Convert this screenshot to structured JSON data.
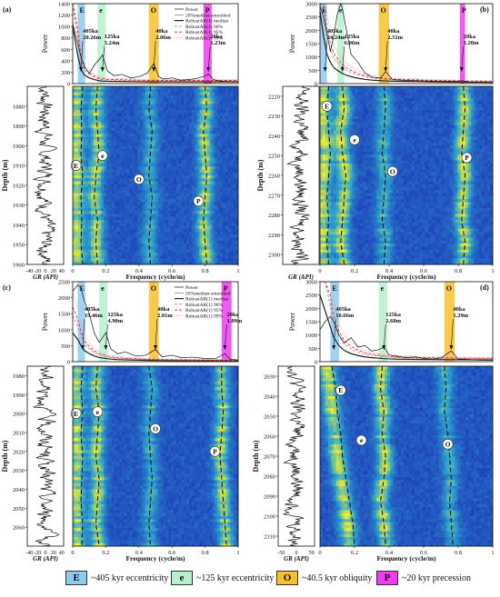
{
  "colors": {
    "E": "#8ecbf0",
    "e": "#b6f0cc",
    "O": "#f6c12b",
    "P": "#f03cf0",
    "heat_low": "#1c2fb8",
    "heat_mid": "#2fa6cf",
    "heat_high": "#f2ef2a"
  },
  "legend": [
    {
      "letter": "E",
      "text": "~405 kyr eccentricity",
      "color": "#8ecbf0"
    },
    {
      "letter": "e",
      "text": "~125 kyr eccentricity",
      "color": "#b6f0cc"
    },
    {
      "letter": "O",
      "text": "~40.5 kyr obliquity",
      "color": "#f6c12b"
    },
    {
      "letter": "P",
      "text": "~20 kyr precession",
      "color": "#f03cf0"
    }
  ],
  "chart_data": [
    {
      "panel": "(a)",
      "type": "line",
      "xlabel": "Frequency (cycle/m)",
      "ylabel_spectrum": "Power",
      "ylabel_heatmap": "Depth (m)",
      "gr_label": "GR (API)",
      "xlim": [
        0,
        1
      ],
      "x_ticks": [
        "0",
        "0.2",
        "0.4",
        "0.6",
        "0.8",
        "1"
      ],
      "power_ylim": [
        0,
        1400
      ],
      "power_ticks": [
        "0",
        "200",
        "400",
        "600",
        "800",
        "1000",
        "1200",
        "1400"
      ],
      "depth_range": [
        1870,
        1960
      ],
      "depth_ticks": [
        "1880",
        "1890",
        "1900",
        "1910",
        "1920",
        "1930",
        "1940",
        "1950",
        "1960"
      ],
      "gr_ticks": [
        "-40",
        "-20",
        "0",
        "20",
        "40"
      ],
      "gr_range": [
        -45,
        45
      ],
      "legend_entries": [
        "Power",
        "20%median-smoothed",
        "RobustAR(1) median",
        "RobustAR(1) 90%",
        "RobustAR(1) 95%",
        "RobustAR(1) 99%"
      ],
      "bands": [
        {
          "letter": "E",
          "x0": 0.03,
          "x1": 0.075
        },
        {
          "letter": "e",
          "x0": 0.15,
          "x1": 0.2
        },
        {
          "letter": "O",
          "x0": 0.46,
          "x1": 0.52
        },
        {
          "letter": "P",
          "x0": 0.79,
          "x1": 0.84
        }
      ],
      "peaks": [
        {
          "label": "405ka",
          "value": "20.26m",
          "x": 0.05
        },
        {
          "label": "125ka",
          "value": "5.24m",
          "x": 0.18
        },
        {
          "label": "40ka",
          "value": "2.06m",
          "x": 0.49
        },
        {
          "label": "20ka",
          "value": "1.23m",
          "x": 0.82
        }
      ],
      "power_x": [
        0,
        0.03,
        0.05,
        0.07,
        0.1,
        0.13,
        0.16,
        0.18,
        0.21,
        0.25,
        0.3,
        0.35,
        0.4,
        0.45,
        0.49,
        0.52,
        0.55,
        0.6,
        0.65,
        0.7,
        0.75,
        0.8,
        0.82,
        0.85,
        0.9,
        1
      ],
      "power_y": [
        1050,
        700,
        470,
        300,
        180,
        320,
        420,
        500,
        220,
        140,
        160,
        100,
        120,
        180,
        350,
        120,
        80,
        100,
        60,
        70,
        90,
        130,
        170,
        70,
        40,
        30
      ],
      "ar_median_y": [
        1000,
        500,
        250,
        150,
        100,
        70,
        50,
        45,
        40,
        38,
        36,
        34,
        32,
        30,
        30,
        30,
        30,
        30,
        30,
        30,
        30,
        30,
        30,
        30,
        30,
        30
      ],
      "tracks": [
        {
          "letter": "E",
          "x": [
            0.06,
            0.05,
            0.055,
            0.05,
            0.06,
            0.05,
            0.055,
            0.05,
            0.06
          ]
        },
        {
          "letter": "e",
          "x": [
            0.15,
            0.14,
            0.15,
            0.16,
            0.14,
            0.13,
            0.15,
            0.14,
            0.15
          ]
        },
        {
          "letter": "O",
          "x": [
            0.47,
            0.46,
            0.48,
            0.47,
            0.46,
            0.48,
            0.47,
            0.46,
            0.47
          ]
        },
        {
          "letter": "P",
          "x": [
            0.8,
            0.81,
            0.79,
            0.8,
            0.81,
            0.8,
            0.79,
            0.8,
            0.81
          ]
        }
      ],
      "circle_labels": [
        {
          "letter": "E",
          "x": 0.02,
          "depth": 1910
        },
        {
          "letter": "e",
          "x": 0.18,
          "depth": 1905
        },
        {
          "letter": "O",
          "x": 0.4,
          "depth": 1917
        },
        {
          "letter": "P",
          "x": 0.76,
          "depth": 1928
        }
      ]
    },
    {
      "panel": "(b)",
      "type": "line",
      "xlabel": "Frequency (cycle/m)",
      "ylabel_spectrum": "Power",
      "ylabel_heatmap": "Depth (m)",
      "gr_label": "GR (API)",
      "xlim": [
        0,
        1
      ],
      "x_ticks": [
        "0",
        "0.2",
        "0.4",
        "0.6",
        "0.8",
        "1"
      ],
      "power_ylim": [
        0,
        3000
      ],
      "power_ticks": [
        "0",
        "500",
        "1000",
        "1500",
        "2000",
        "2500",
        "3000"
      ],
      "depth_range": [
        2215,
        2305
      ],
      "depth_ticks": [
        "2220",
        "2230",
        "2240",
        "2250",
        "2260",
        "2270",
        "2280",
        "2290",
        "2300"
      ],
      "gr_ticks": [],
      "gr_range": [
        -45,
        45
      ],
      "legend_entries": [],
      "bands": [
        {
          "letter": "E",
          "x0": 0.0,
          "x1": 0.04
        },
        {
          "letter": "e",
          "x0": 0.1,
          "x1": 0.14
        },
        {
          "letter": "O",
          "x0": 0.34,
          "x1": 0.4
        },
        {
          "letter": "P",
          "x0": 0.81,
          "x1": 0.84
        }
      ],
      "peaks": [
        {
          "label": "405ka",
          "value": "24.24m",
          "x": 0.03
        },
        {
          "label": "125ka",
          "value": "6.06m",
          "x": 0.13
        },
        {
          "label": "40ka",
          "value": "2.51m",
          "x": 0.38
        },
        {
          "label": "20ka",
          "value": "1.20m",
          "x": 0.82
        }
      ],
      "power_x": [
        0,
        0.02,
        0.04,
        0.06,
        0.08,
        0.1,
        0.12,
        0.13,
        0.15,
        0.18,
        0.22,
        0.26,
        0.3,
        0.35,
        0.38,
        0.42,
        0.5,
        0.6,
        0.7,
        0.8,
        0.82,
        0.86,
        0.9,
        1
      ],
      "power_y": [
        2900,
        2500,
        1900,
        1200,
        1800,
        2600,
        3000,
        2800,
        2100,
        1100,
        800,
        400,
        250,
        200,
        450,
        150,
        120,
        100,
        80,
        90,
        110,
        60,
        50,
        40
      ],
      "ar_median_y": [
        2700,
        1800,
        1100,
        800,
        600,
        500,
        420,
        380,
        320,
        260,
        200,
        160,
        130,
        110,
        100,
        90,
        80,
        70,
        60,
        55,
        55,
        50,
        50,
        45
      ],
      "tracks": [
        {
          "letter": "E",
          "x": [
            0.05,
            0.04,
            0.05,
            0.06,
            0.05,
            0.04,
            0.05,
            0.04,
            0.05
          ]
        },
        {
          "letter": "e",
          "x": [
            0.13,
            0.14,
            0.12,
            0.13,
            0.15,
            0.14,
            0.13,
            0.12,
            0.14
          ]
        },
        {
          "letter": "O",
          "x": [
            0.37,
            0.38,
            0.37,
            0.36,
            0.38,
            0.37,
            0.36,
            0.38,
            0.37
          ]
        },
        {
          "letter": "P",
          "x": [
            0.83,
            0.84,
            0.83,
            0.82,
            0.84,
            0.83,
            0.82,
            0.84,
            0.83
          ]
        }
      ],
      "circle_labels": [
        {
          "letter": "E",
          "x": 0.04,
          "depth": 2225
        },
        {
          "letter": "e",
          "x": 0.2,
          "depth": 2242
        },
        {
          "letter": "O",
          "x": 0.42,
          "depth": 2258
        },
        {
          "letter": "P",
          "x": 0.85,
          "depth": 2251
        }
      ]
    },
    {
      "panel": "(c)",
      "type": "line",
      "xlabel": "Frequency (cycle/m)",
      "ylabel_spectrum": "Power",
      "ylabel_heatmap": "Depth (m)",
      "gr_label": "GR (API)",
      "xlim": [
        0,
        1
      ],
      "x_ticks": [
        "0",
        "0.2",
        "0.4",
        "0.6",
        "0.8",
        "1"
      ],
      "power_ylim": [
        0,
        2500
      ],
      "power_ticks": [
        "0",
        "500",
        "1000",
        "1500",
        "2000",
        "2500"
      ],
      "depth_range": [
        1975,
        2070
      ],
      "depth_ticks": [
        "1980",
        "1990",
        "2000",
        "2010",
        "2020",
        "2030",
        "2040",
        "2050",
        "2060"
      ],
      "gr_ticks": [
        "-40",
        "-20",
        "0",
        "20",
        "40"
      ],
      "gr_range": [
        -45,
        45
      ],
      "legend_entries": [
        "Power",
        "20%median-smoothed",
        "RobustAR(1) median",
        "RobustAR(1) 90%",
        "RobustAR(1) 95%",
        "RobustAR(1) 99%"
      ],
      "bands": [
        {
          "letter": "E",
          "x0": 0.03,
          "x1": 0.075
        },
        {
          "letter": "e",
          "x0": 0.16,
          "x1": 0.21
        },
        {
          "letter": "O",
          "x0": 0.46,
          "x1": 0.52
        },
        {
          "letter": "P",
          "x0": 0.9,
          "x1": 0.96
        }
      ],
      "peaks": [
        {
          "label": "405ka",
          "value": "19.46m",
          "x": 0.06
        },
        {
          "label": "125ka",
          "value": "4.90m",
          "x": 0.2
        },
        {
          "label": "40ka",
          "value": "2.01m",
          "x": 0.5
        },
        {
          "label": "20ka",
          "value": "1.09m",
          "x": 0.92
        }
      ],
      "power_x": [
        0,
        0.03,
        0.05,
        0.07,
        0.1,
        0.13,
        0.16,
        0.2,
        0.23,
        0.27,
        0.32,
        0.38,
        0.44,
        0.5,
        0.54,
        0.6,
        0.66,
        0.72,
        0.8,
        0.86,
        0.92,
        0.95,
        1
      ],
      "power_y": [
        2200,
        2400,
        2300,
        1900,
        1500,
        900,
        600,
        900,
        400,
        250,
        300,
        180,
        200,
        380,
        150,
        200,
        120,
        140,
        100,
        90,
        250,
        80,
        50
      ],
      "ar_median_y": [
        900,
        700,
        500,
        350,
        250,
        180,
        130,
        100,
        80,
        65,
        55,
        48,
        42,
        38,
        35,
        33,
        31,
        30,
        29,
        28,
        28,
        27,
        27
      ],
      "tracks": [
        {
          "letter": "E",
          "x": [
            0.06,
            0.05,
            0.06,
            0.05,
            0.06,
            0.055,
            0.05,
            0.06,
            0.055
          ]
        },
        {
          "letter": "e",
          "x": [
            0.15,
            0.14,
            0.16,
            0.15,
            0.14,
            0.16,
            0.15,
            0.14,
            0.16
          ]
        },
        {
          "letter": "O",
          "x": [
            0.46,
            0.48,
            0.47,
            0.46,
            0.47,
            0.48,
            0.47,
            0.46,
            0.47
          ]
        },
        {
          "letter": "P",
          "x": [
            0.9,
            0.9,
            0.91,
            0.9,
            0.89,
            0.9,
            0.91,
            0.92,
            0.93
          ]
        }
      ],
      "circle_labels": [
        {
          "letter": "E",
          "x": 0.02,
          "depth": 2000
        },
        {
          "letter": "e",
          "x": 0.15,
          "depth": 1999
        },
        {
          "letter": "O",
          "x": 0.5,
          "depth": 2008
        },
        {
          "letter": "P",
          "x": 0.86,
          "depth": 2020
        }
      ]
    },
    {
      "panel": "(d)",
      "type": "line",
      "xlabel": "Frequency (cycle/m)",
      "ylabel_spectrum": "Power",
      "ylabel_heatmap": "Depth (m)",
      "gr_label": "GR (API)",
      "xlim": [
        0,
        1
      ],
      "x_ticks": [
        "0",
        "0.2",
        "0.4",
        "0.6",
        "0.8",
        "1"
      ],
      "power_ylim": [
        0,
        3000
      ],
      "power_ticks": [
        "0",
        "500",
        "1000",
        "1500",
        "2000",
        "2500",
        "3000"
      ],
      "depth_range": [
        2025,
        2115
      ],
      "depth_ticks": [
        "2030",
        "2040",
        "2050",
        "2060",
        "2070",
        "2080",
        "2090",
        "2100",
        "2110"
      ],
      "gr_ticks": [
        "-50",
        "0",
        "50"
      ],
      "gr_range": [
        -60,
        60
      ],
      "legend_entries": [],
      "bands": [
        {
          "letter": "E",
          "x0": 0.06,
          "x1": 0.11
        },
        {
          "letter": "e",
          "x0": 0.34,
          "x1": 0.39
        },
        {
          "letter": "O",
          "x0": 0.72,
          "x1": 0.78
        }
      ],
      "peaks": [
        {
          "label": "405ka",
          "value": "10.66m",
          "x": 0.08
        },
        {
          "label": "125ka",
          "value": "2.68m",
          "x": 0.37
        },
        {
          "label": "40ka",
          "value": "1.29m",
          "x": 0.76
        }
      ],
      "power_x": [
        0,
        0.03,
        0.06,
        0.08,
        0.11,
        0.14,
        0.18,
        0.22,
        0.26,
        0.3,
        0.34,
        0.37,
        0.4,
        0.45,
        0.5,
        0.55,
        0.6,
        0.65,
        0.7,
        0.76,
        0.8,
        0.86,
        0.92,
        1
      ],
      "power_y": [
        1200,
        1500,
        1700,
        1500,
        1000,
        700,
        900,
        550,
        600,
        400,
        450,
        550,
        250,
        200,
        150,
        180,
        120,
        100,
        140,
        400,
        100,
        80,
        60,
        50
      ],
      "ar_median_y": [
        2500,
        1900,
        1300,
        900,
        600,
        420,
        300,
        230,
        180,
        150,
        130,
        115,
        105,
        95,
        90,
        85,
        80,
        78,
        76,
        74,
        72,
        70,
        68,
        66
      ],
      "tracks": [
        {
          "letter": "E",
          "x": [
            0.07,
            0.09,
            0.1,
            0.12,
            0.13,
            0.15,
            0.17,
            0.19,
            0.2
          ]
        },
        {
          "letter": "e",
          "x": [
            0.36,
            0.35,
            0.37,
            0.36,
            0.38,
            0.37,
            0.35,
            0.37,
            0.38
          ]
        },
        {
          "letter": "O",
          "x": [
            0.72,
            0.73,
            0.72,
            0.74,
            0.75,
            0.76,
            0.75,
            0.76,
            0.77
          ]
        }
      ],
      "circle_labels": [
        {
          "letter": "E",
          "x": 0.12,
          "depth": 2037
        },
        {
          "letter": "e",
          "x": 0.24,
          "depth": 2062
        },
        {
          "letter": "O",
          "x": 0.74,
          "depth": 2064
        }
      ]
    }
  ]
}
